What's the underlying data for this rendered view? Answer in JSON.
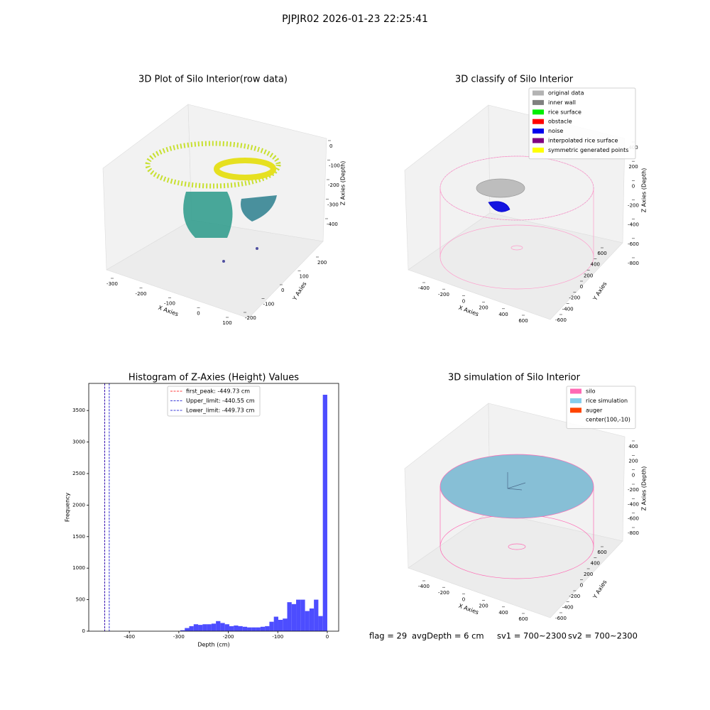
{
  "title": "PJPJR02 2026-01-23 22:25:41",
  "chart_data": [
    {
      "type": "3d",
      "title": "3D Plot of Silo Interior(row data)",
      "xlabel": "X Axies",
      "ylabel": "Y Axies",
      "zlabel": "Z Axies (Depth)",
      "xticks": [
        -300,
        -200,
        -100,
        0,
        100
      ],
      "yticks": [
        -200,
        -100,
        0,
        100,
        200
      ],
      "zticks": [
        0,
        -100,
        -200,
        -300,
        -400
      ]
    },
    {
      "type": "3d",
      "title": "3D classify of Silo Interior",
      "xlabel": "X Axies",
      "ylabel": "Y Axies",
      "zlabel": "Z Axies (Depth)",
      "xticks": [
        -400,
        -200,
        0,
        200,
        400,
        600
      ],
      "yticks": [
        -600,
        -400,
        -200,
        0,
        200,
        400,
        600
      ],
      "zticks": [
        400,
        200,
        0,
        -200,
        -400,
        -600,
        -800
      ],
      "series": [
        {
          "name": "original data",
          "color": "#b3b3b3"
        },
        {
          "name": "inner wall",
          "color": "#808080"
        },
        {
          "name": "rice surface",
          "color": "#00ee00"
        },
        {
          "name": "obstacle",
          "color": "#ff0000"
        },
        {
          "name": "noise",
          "color": "#0000ee"
        },
        {
          "name": "interpolated rice surface",
          "color": "#800080"
        },
        {
          "name": "symmetric generated points",
          "color": "#ffff00"
        }
      ]
    },
    {
      "type": "histogram",
      "title": "Histogram of Z-Axies (Height) Values",
      "xlabel": "Depth (cm)",
      "ylabel": "Frequency",
      "color": "#4d4dff",
      "bins": [
        -450,
        -441,
        -432,
        -423,
        -414,
        -405,
        -396,
        -387,
        -378,
        -369,
        -360,
        -351,
        -342,
        -333,
        -324,
        -315,
        -306,
        -297,
        -288,
        -279,
        -270,
        -261,
        -252,
        -243,
        -234,
        -225,
        -216,
        -207,
        -198,
        -189,
        -180,
        -171,
        -162,
        -153,
        -144,
        -135,
        -126,
        -117,
        -108,
        -99,
        -90,
        -81,
        -72,
        -63,
        -54,
        -45,
        -36,
        -27,
        -18,
        -9,
        0
      ],
      "values": [
        0,
        0,
        0,
        0,
        0,
        0,
        0,
        0,
        0,
        0,
        0,
        0,
        0,
        0,
        0,
        0,
        0,
        15,
        50,
        80,
        110,
        100,
        110,
        110,
        120,
        160,
        130,
        110,
        80,
        90,
        80,
        70,
        60,
        60,
        60,
        70,
        80,
        150,
        230,
        180,
        200,
        460,
        430,
        500,
        500,
        320,
        360,
        500,
        240,
        3750
      ],
      "xlim": [
        -482,
        23
      ],
      "ylim": [
        0,
        3930
      ],
      "xticks": [
        -400,
        -300,
        -200,
        -100,
        0
      ],
      "yticks": [
        0,
        500,
        1000,
        1500,
        2000,
        2500,
        3000,
        3500
      ],
      "lines": [
        {
          "name": "first_peak: -449.73 cm",
          "value": -449.73,
          "color": "#ff0000"
        },
        {
          "name": "Upper_limit: -440.55 cm",
          "value": -440.55,
          "color": "#0000cc"
        },
        {
          "name": "Lower_limit: -449.73 cm",
          "value": -449.73,
          "color": "#0000cc"
        }
      ]
    },
    {
      "type": "3d",
      "title": "3D simulation of Silo Interior",
      "xlabel": "X Axies",
      "ylabel": "Y Axies",
      "zlabel": "Z Axies (Depth)",
      "xticks": [
        -400,
        -200,
        0,
        200,
        400,
        600
      ],
      "yticks": [
        -600,
        -400,
        -200,
        0,
        200,
        400,
        600
      ],
      "zticks": [
        400,
        200,
        0,
        -200,
        -400,
        -600,
        -800
      ],
      "series": [
        {
          "name": "silo",
          "color": "#ff69b4"
        },
        {
          "name": "rice simulation",
          "color": "#87ceeb"
        },
        {
          "name": "auger",
          "color": "#ff4500"
        },
        {
          "name": "center(100,-10)",
          "color": "none"
        }
      ]
    }
  ],
  "annotations": [
    "flag = 29",
    "avgDepth = 6 cm",
    "sv1 = 700~2300",
    "sv2 = 700~2300"
  ]
}
